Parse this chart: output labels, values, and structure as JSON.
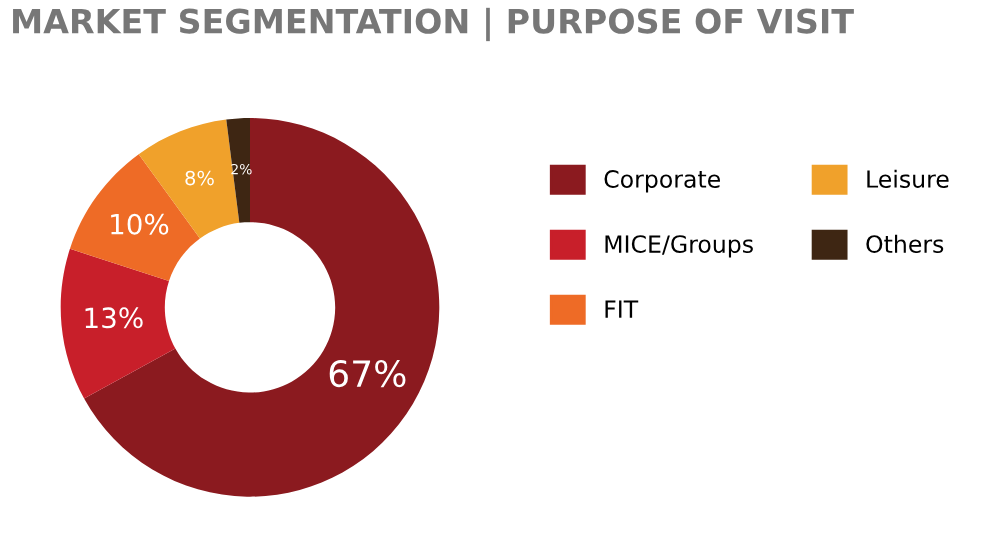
{
  "chart_data": {
    "type": "donut",
    "title": "MARKET SEGMENTATION | PURPOSE OF VISIT",
    "categories": [
      "Corporate",
      "MICE/Groups",
      "FIT",
      "Leisure",
      "Others"
    ],
    "values": [
      67,
      13,
      10,
      8,
      2
    ],
    "colors": [
      "#8b1a1f",
      "#c81f2a",
      "#ee6b26",
      "#f0a12b",
      "#3e2613"
    ],
    "value_labels": [
      "67%",
      "13%",
      "10%",
      "8%",
      "2%"
    ],
    "legend": "right"
  }
}
